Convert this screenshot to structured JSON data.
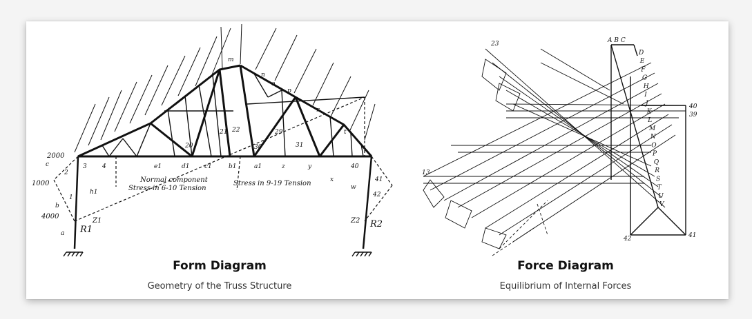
{
  "left": {
    "title": "Form Diagram",
    "subtitle": "Geometry of the Truss Structure",
    "annotations": {
      "normal": "Normal component",
      "stress_left": "Stress in 6-10 Tension",
      "stress_right": "Stress in 9-19 Tension",
      "load_2000": "2000",
      "load_1000": "1000",
      "load_4000": "4000",
      "r1": "R1",
      "r2": "R2",
      "z1": "Z1",
      "z2": "Z2"
    }
  },
  "right": {
    "title": "Force Diagram",
    "subtitle": "Equilibrium of Internal Forces",
    "top_labels": "A B C",
    "node_letters": [
      "D",
      "E",
      "F",
      "G",
      "H",
      "I",
      "J",
      "K",
      "L",
      "M",
      "N",
      "O",
      "P",
      "Q",
      "R",
      "S",
      "T",
      "U",
      "V"
    ],
    "numbers": {
      "n40": "40",
      "n39": "39",
      "n41": "41",
      "n42": "42",
      "n23": "23",
      "n13": "13"
    }
  }
}
